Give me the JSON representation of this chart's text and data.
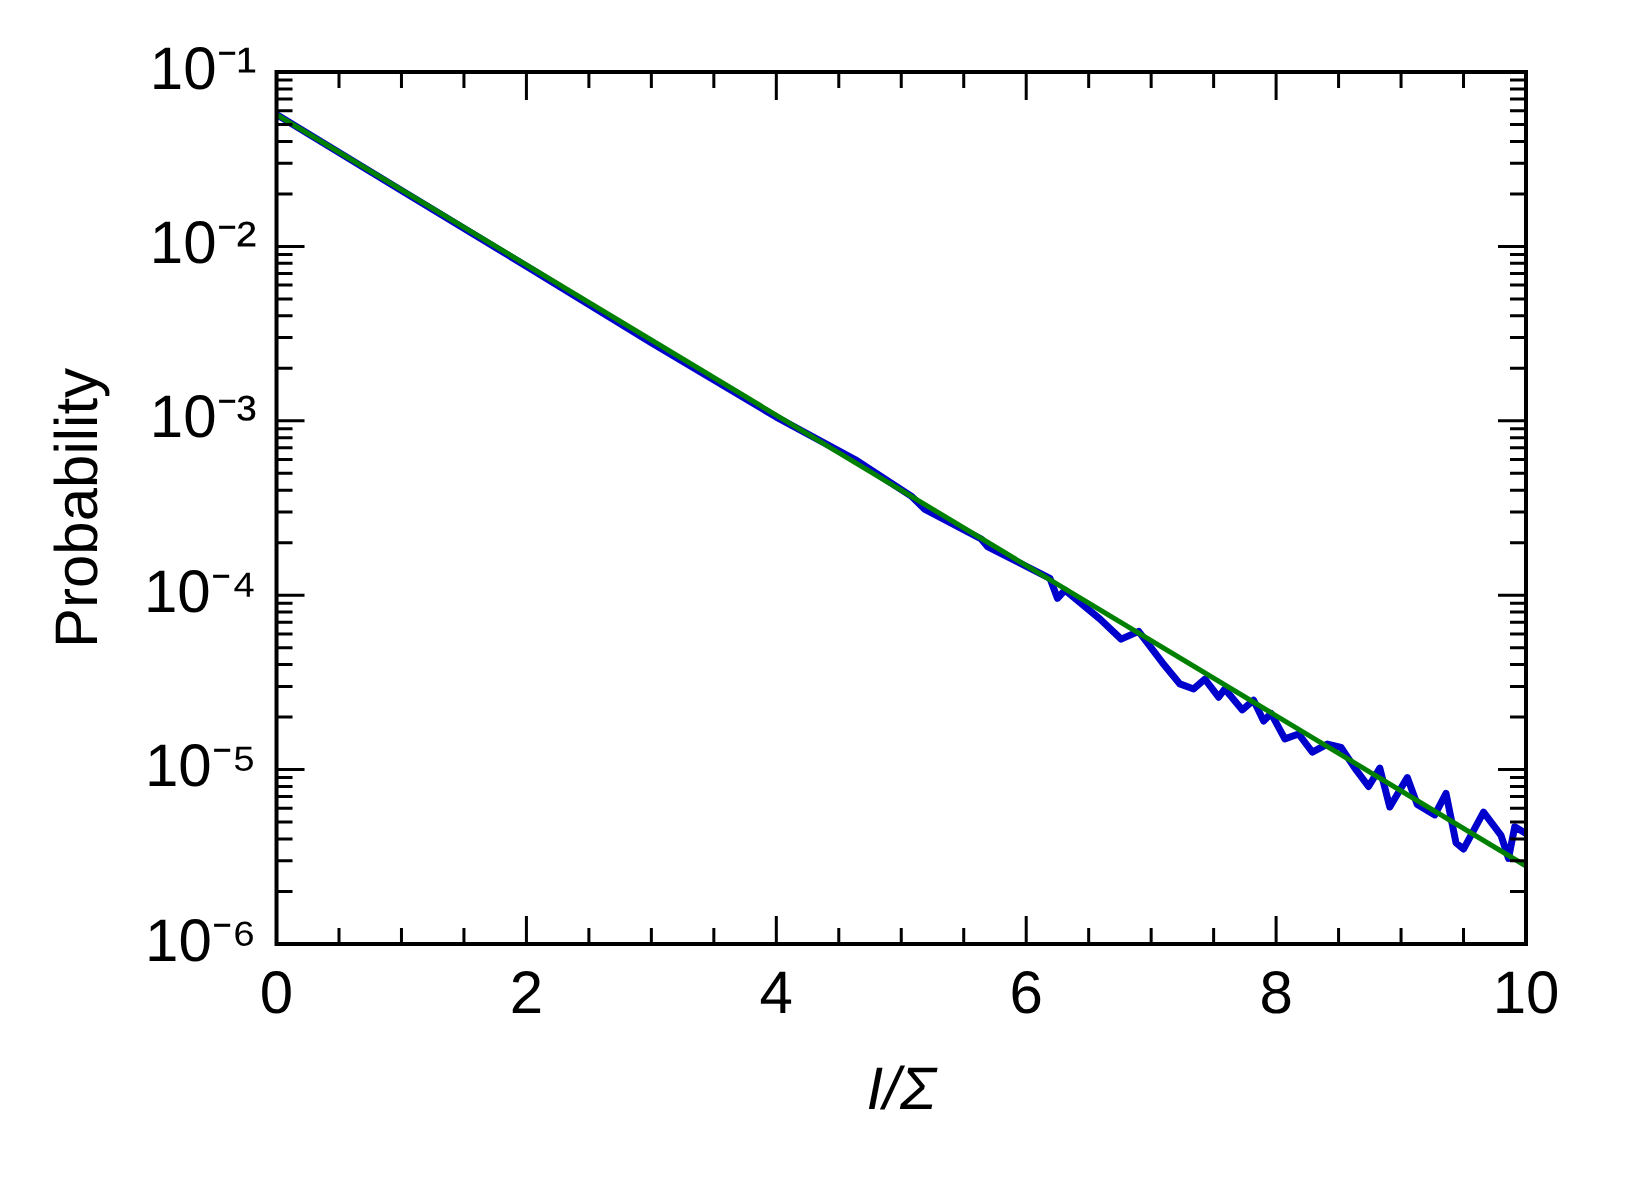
{
  "chart_data": {
    "type": "line",
    "xlabel": "I/Σ",
    "ylabel": "Probability",
    "log": "y",
    "grid": false,
    "legend": false,
    "marker": "none",
    "line_style": "solid",
    "xlim": [
      0,
      10
    ],
    "ylim": [
      1e-06,
      0.1
    ],
    "xticks": [
      0,
      {
        "value": 0.5,
        "label": null
      },
      {
        "value": 1,
        "label": null
      },
      {
        "value": 1.5,
        "label": null
      },
      2,
      {
        "value": 2.5,
        "label": null
      },
      {
        "value": 3,
        "label": null
      },
      {
        "value": 3.5,
        "label": null
      },
      4,
      {
        "value": 4.5,
        "label": null
      },
      {
        "value": 5,
        "label": null
      },
      {
        "value": 5.5,
        "label": null
      },
      6,
      {
        "value": 6.5,
        "label": null
      },
      {
        "value": 7,
        "label": null
      },
      {
        "value": 7.5,
        "label": null
      },
      8,
      {
        "value": 8.5,
        "label": null
      },
      {
        "value": 9,
        "label": null
      },
      {
        "value": 9.5,
        "label": null
      },
      10
    ],
    "yticks": [
      {
        "value": 1e-06,
        "label": "10⁻⁶"
      },
      {
        "value": 1e-05,
        "label": "10⁻⁵"
      },
      {
        "value": 0.0001,
        "label": "10⁻⁴"
      },
      {
        "value": 0.001,
        "label": "10⁻³"
      },
      {
        "value": 0.01,
        "label": "10⁻²"
      },
      {
        "value": 0.1,
        "label": "10⁻¹"
      }
    ],
    "series": [
      {
        "color": "#008000",
        "x": [
          0,
          10
        ],
        "values": [
          0.057,
          2.8e-06
        ]
      },
      {
        "color": "#0000cc",
        "x": [
          0,
          1,
          2,
          3,
          4,
          4.63,
          5.08,
          5.19,
          5.64,
          5.69,
          6.19,
          6.25,
          6.31,
          6.59,
          6.76,
          6.9,
          7.09,
          7.23,
          7.34,
          7.43,
          7.54,
          7.59,
          7.73,
          7.82,
          7.9,
          7.96,
          8.07,
          8.18,
          8.29,
          8.41,
          8.52,
          8.63,
          8.74,
          8.83,
          8.91,
          9.05,
          9.13,
          9.27,
          9.36,
          9.44,
          9.5,
          9.66,
          9.8,
          9.86,
          9.91,
          10
        ],
        "values": [
          0.057,
          0.0209,
          0.0077,
          0.0028,
          0.00105,
          0.0006,
          0.00037,
          0.00031,
          0.00021,
          0.00019,
          0.000125,
          9.6e-05,
          0.000107,
          7.3e-05,
          5.6e-05,
          6.2e-05,
          4.1e-05,
          3.1e-05,
          2.9e-05,
          3.3e-05,
          2.6e-05,
          2.9e-05,
          2.2e-05,
          2.5e-05,
          1.9e-05,
          2.1e-05,
          1.5e-05,
          1.6e-05,
          1.26e-05,
          1.4e-05,
          1.34e-05,
          1.02e-05,
          8e-06,
          1.02e-05,
          6.1e-06,
          9e-06,
          6.3e-06,
          5.5e-06,
          7.3e-06,
          3.8e-06,
          3.5e-06,
          5.7e-06,
          4.2e-06,
          3.1e-06,
          4.7e-06,
          4.3e-06
        ]
      }
    ]
  }
}
